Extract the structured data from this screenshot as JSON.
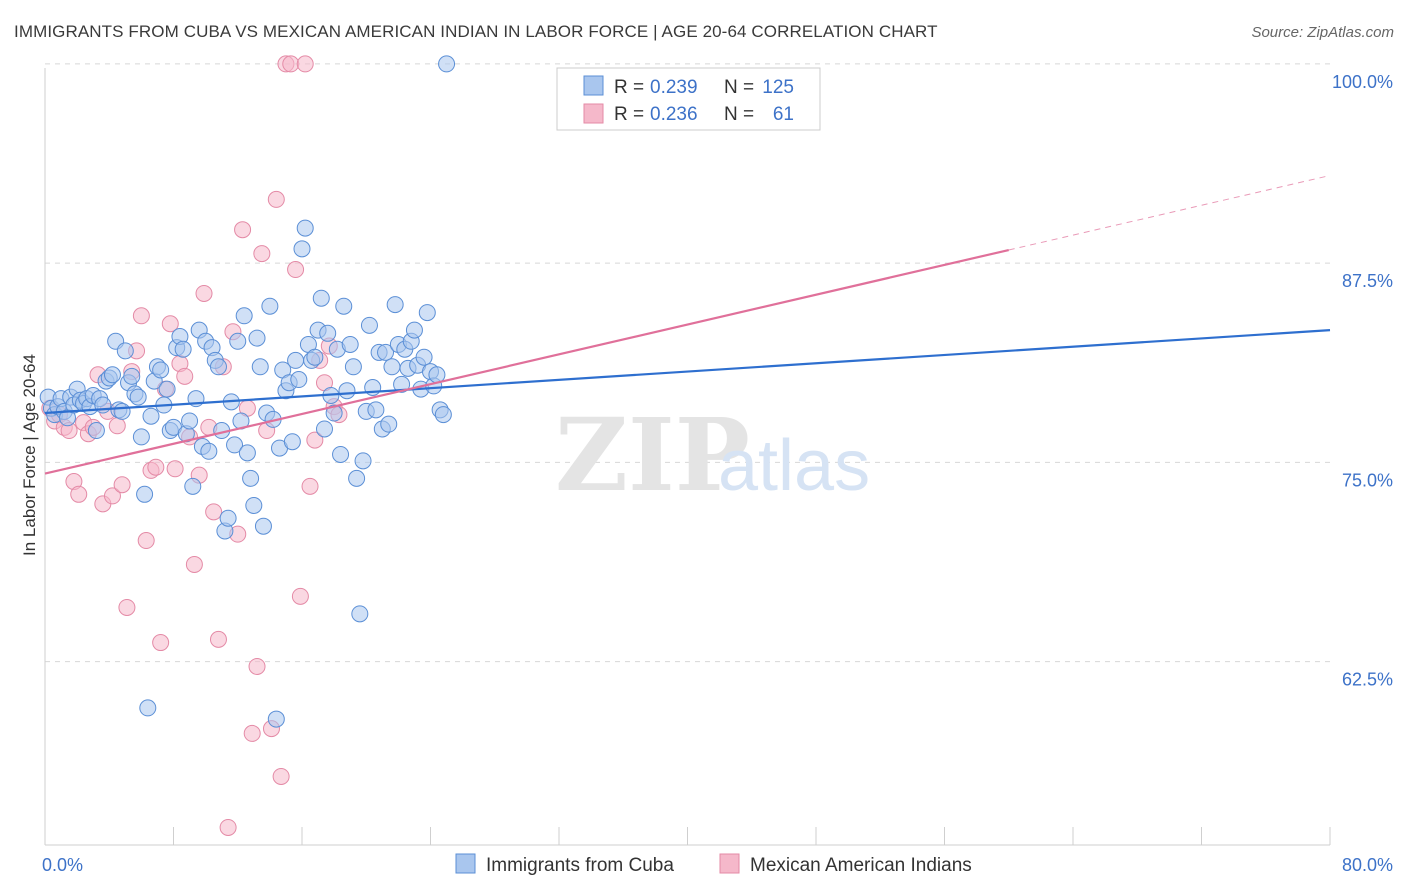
{
  "header": {
    "title": "IMMIGRANTS FROM CUBA VS MEXICAN AMERICAN INDIAN IN LABOR FORCE | AGE 20-64 CORRELATION CHART",
    "source": "Source: ZipAtlas.com"
  },
  "watermark": {
    "zip": "ZIP",
    "atlas": "atlas"
  },
  "colors": {
    "series1_fill": "#a9c6ee",
    "series1_stroke": "#5b8fd6",
    "series1_line": "#2e6fcf",
    "series2_fill": "#f5b8ca",
    "series2_stroke": "#e48aa6",
    "series2_line": "#e0709a",
    "tick_label": "#3d72c8",
    "grid": "#d8d8d8"
  },
  "legend": {
    "rows": [
      {
        "r_label": "R =",
        "r_value": "0.239",
        "n_label": "N =",
        "n_value": "125"
      },
      {
        "r_label": "R =",
        "r_value": "0.236",
        "n_label": "N =",
        "n_value": "61"
      }
    ]
  },
  "chart_data": {
    "type": "scatter",
    "title": "IMMIGRANTS FROM CUBA VS MEXICAN AMERICAN INDIAN IN LABOR FORCE | AGE 20-64 CORRELATION CHART",
    "xlabel": "",
    "ylabel": "In Labor Force | Age 20-64",
    "xlim": [
      0,
      80
    ],
    "ylim": [
      51,
      101.5
    ],
    "x_tick_labels": [
      {
        "value": 0,
        "label": "0.0%"
      },
      {
        "value": 80,
        "label": "80.0%"
      }
    ],
    "y_tick_labels": [
      {
        "value": 100,
        "label": "100.0%"
      },
      {
        "value": 87.5,
        "label": "87.5%"
      },
      {
        "value": 75,
        "label": "75.0%"
      },
      {
        "value": 62.5,
        "label": "62.5%"
      }
    ],
    "grid": true,
    "legend_position": "top-center",
    "series": [
      {
        "name": "Immigrants from Cuba",
        "R": 0.239,
        "N": 125,
        "trend": {
          "x": [
            0,
            80
          ],
          "y": [
            78.1,
            83.3
          ]
        },
        "points": [
          [
            0.2,
            79.1
          ],
          [
            0.4,
            78.4
          ],
          [
            0.6,
            78.0
          ],
          [
            0.8,
            78.5
          ],
          [
            1.0,
            79.0
          ],
          [
            1.2,
            78.2
          ],
          [
            1.4,
            77.8
          ],
          [
            1.6,
            79.1
          ],
          [
            1.8,
            78.6
          ],
          [
            2.0,
            79.6
          ],
          [
            2.2,
            78.9
          ],
          [
            2.4,
            78.7
          ],
          [
            2.6,
            79.0
          ],
          [
            2.8,
            78.5
          ],
          [
            3.0,
            79.2
          ],
          [
            3.2,
            77.0
          ],
          [
            3.4,
            79.0
          ],
          [
            3.6,
            78.6
          ],
          [
            3.8,
            80.1
          ],
          [
            4.0,
            80.3
          ],
          [
            4.2,
            80.5
          ],
          [
            4.4,
            82.6
          ],
          [
            4.6,
            78.3
          ],
          [
            4.8,
            78.2
          ],
          [
            5.0,
            82.0
          ],
          [
            5.2,
            80.0
          ],
          [
            5.4,
            80.4
          ],
          [
            5.6,
            79.3
          ],
          [
            5.8,
            79.1
          ],
          [
            6.0,
            76.6
          ],
          [
            6.2,
            73.0
          ],
          [
            6.4,
            59.6
          ],
          [
            6.6,
            77.9
          ],
          [
            6.8,
            80.1
          ],
          [
            7.0,
            81.0
          ],
          [
            7.2,
            80.8
          ],
          [
            7.4,
            78.6
          ],
          [
            7.6,
            79.6
          ],
          [
            7.8,
            77.0
          ],
          [
            8.0,
            77.2
          ],
          [
            8.2,
            82.2
          ],
          [
            8.4,
            82.9
          ],
          [
            8.6,
            82.1
          ],
          [
            8.8,
            76.8
          ],
          [
            9.0,
            77.6
          ],
          [
            9.2,
            73.5
          ],
          [
            9.4,
            79.0
          ],
          [
            9.6,
            83.3
          ],
          [
            9.8,
            76.0
          ],
          [
            10.0,
            82.6
          ],
          [
            10.2,
            75.7
          ],
          [
            10.4,
            82.2
          ],
          [
            10.6,
            81.4
          ],
          [
            10.8,
            81.0
          ],
          [
            11.0,
            77.0
          ],
          [
            11.2,
            70.7
          ],
          [
            11.4,
            71.5
          ],
          [
            11.6,
            78.8
          ],
          [
            11.8,
            76.1
          ],
          [
            12.0,
            82.6
          ],
          [
            12.2,
            77.6
          ],
          [
            12.4,
            84.2
          ],
          [
            12.6,
            75.6
          ],
          [
            12.8,
            74.0
          ],
          [
            13.0,
            72.3
          ],
          [
            13.2,
            82.8
          ],
          [
            13.4,
            81.0
          ],
          [
            13.6,
            71.0
          ],
          [
            13.8,
            78.1
          ],
          [
            14.0,
            84.8
          ],
          [
            14.2,
            77.7
          ],
          [
            14.4,
            58.9
          ],
          [
            14.6,
            75.9
          ],
          [
            14.8,
            80.8
          ],
          [
            15.0,
            79.5
          ],
          [
            15.2,
            80.0
          ],
          [
            15.4,
            76.3
          ],
          [
            15.6,
            81.4
          ],
          [
            15.8,
            80.2
          ],
          [
            16.0,
            88.4
          ],
          [
            16.2,
            89.7
          ],
          [
            16.4,
            82.4
          ],
          [
            16.6,
            81.4
          ],
          [
            16.8,
            81.6
          ],
          [
            17.0,
            83.3
          ],
          [
            17.2,
            85.3
          ],
          [
            17.4,
            77.1
          ],
          [
            17.6,
            83.1
          ],
          [
            17.8,
            79.2
          ],
          [
            18.0,
            78.1
          ],
          [
            18.2,
            82.1
          ],
          [
            18.4,
            75.5
          ],
          [
            18.6,
            84.8
          ],
          [
            18.8,
            79.5
          ],
          [
            19.0,
            82.4
          ],
          [
            19.2,
            81.0
          ],
          [
            19.4,
            74.0
          ],
          [
            19.6,
            65.5
          ],
          [
            19.8,
            75.1
          ],
          [
            20.0,
            78.2
          ],
          [
            20.2,
            83.6
          ],
          [
            20.4,
            79.7
          ],
          [
            20.6,
            78.3
          ],
          [
            20.8,
            81.9
          ],
          [
            21.0,
            77.1
          ],
          [
            21.2,
            81.9
          ],
          [
            21.4,
            77.4
          ],
          [
            21.6,
            81.0
          ],
          [
            21.8,
            84.9
          ],
          [
            22.0,
            82.4
          ],
          [
            22.2,
            79.9
          ],
          [
            22.4,
            82.1
          ],
          [
            22.6,
            80.9
          ],
          [
            22.8,
            82.6
          ],
          [
            23.0,
            83.3
          ],
          [
            23.2,
            81.1
          ],
          [
            23.4,
            79.6
          ],
          [
            23.6,
            81.6
          ],
          [
            23.8,
            84.4
          ],
          [
            24.0,
            80.7
          ],
          [
            24.2,
            79.8
          ],
          [
            24.4,
            80.5
          ],
          [
            24.6,
            78.3
          ],
          [
            24.8,
            78.0
          ],
          [
            25.0,
            100.0
          ]
        ]
      },
      {
        "name": "Mexican American Indians",
        "R": 0.236,
        "N": 61,
        "trend": {
          "x": [
            0,
            80
          ],
          "y": [
            74.3,
            93.0
          ]
        },
        "trend_solid_until_x": 60,
        "points": [
          [
            0.3,
            78.4
          ],
          [
            0.6,
            77.6
          ],
          [
            0.9,
            78.0
          ],
          [
            1.2,
            77.2
          ],
          [
            1.5,
            77.0
          ],
          [
            1.8,
            73.8
          ],
          [
            2.1,
            73.0
          ],
          [
            2.4,
            77.5
          ],
          [
            2.7,
            76.8
          ],
          [
            3.0,
            77.2
          ],
          [
            3.3,
            80.5
          ],
          [
            3.6,
            72.4
          ],
          [
            3.9,
            78.2
          ],
          [
            4.2,
            72.9
          ],
          [
            4.5,
            77.3
          ],
          [
            4.8,
            73.6
          ],
          [
            5.1,
            65.9
          ],
          [
            5.4,
            80.7
          ],
          [
            5.7,
            82.0
          ],
          [
            6.0,
            84.2
          ],
          [
            6.3,
            70.1
          ],
          [
            6.6,
            74.5
          ],
          [
            6.9,
            74.7
          ],
          [
            7.2,
            63.7
          ],
          [
            7.5,
            79.6
          ],
          [
            7.8,
            83.7
          ],
          [
            8.1,
            74.6
          ],
          [
            8.4,
            81.2
          ],
          [
            8.7,
            80.4
          ],
          [
            9.0,
            76.6
          ],
          [
            9.3,
            68.6
          ],
          [
            9.6,
            74.2
          ],
          [
            9.9,
            85.6
          ],
          [
            10.2,
            77.2
          ],
          [
            10.5,
            71.9
          ],
          [
            10.8,
            63.9
          ],
          [
            11.1,
            81.0
          ],
          [
            11.4,
            52.1
          ],
          [
            11.7,
            83.2
          ],
          [
            12.0,
            70.5
          ],
          [
            12.3,
            89.6
          ],
          [
            12.6,
            78.4
          ],
          [
            12.9,
            58.0
          ],
          [
            13.2,
            62.2
          ],
          [
            13.5,
            88.1
          ],
          [
            13.8,
            77.0
          ],
          [
            14.1,
            58.3
          ],
          [
            14.4,
            91.5
          ],
          [
            14.7,
            55.3
          ],
          [
            15.0,
            100.0
          ],
          [
            15.3,
            100.0
          ],
          [
            15.6,
            87.1
          ],
          [
            15.9,
            66.6
          ],
          [
            16.2,
            100.0
          ],
          [
            16.5,
            73.5
          ],
          [
            16.8,
            76.4
          ],
          [
            17.1,
            81.4
          ],
          [
            17.4,
            80.0
          ],
          [
            17.7,
            82.3
          ],
          [
            18.0,
            78.5
          ],
          [
            18.3,
            78.0
          ]
        ]
      }
    ]
  },
  "bottom_legend": {
    "items": [
      {
        "label": "Immigrants from Cuba"
      },
      {
        "label": "Mexican American Indians"
      }
    ]
  }
}
